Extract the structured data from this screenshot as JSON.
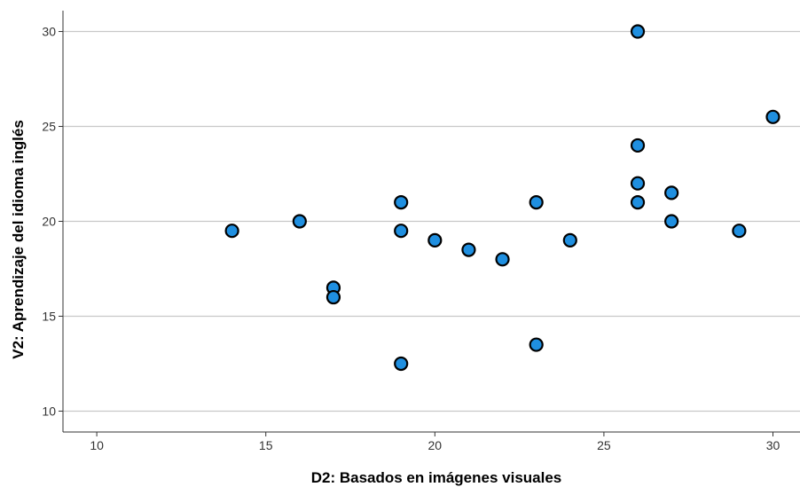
{
  "chart_data": {
    "type": "scatter",
    "title": "",
    "xlabel": "D2: Basados en imágenes visuales",
    "ylabel": "V2: Aprendizaje del idioma inglés",
    "xlim": [
      9,
      30.8
    ],
    "ylim": [
      8.9,
      31.1
    ],
    "xticks": [
      10,
      15,
      20,
      25,
      30
    ],
    "yticks": [
      10,
      15,
      20,
      25,
      30
    ],
    "grid": "horizontal",
    "legend": "none",
    "colors": {
      "point_fill": "#1f8fe0",
      "point_stroke": "#000000",
      "grid": "#c8c8c8",
      "axis": "#333333"
    },
    "points": [
      {
        "x": 14,
        "y": 19.5
      },
      {
        "x": 16,
        "y": 20
      },
      {
        "x": 17,
        "y": 16.5
      },
      {
        "x": 17,
        "y": 16
      },
      {
        "x": 19,
        "y": 21
      },
      {
        "x": 19,
        "y": 19.5
      },
      {
        "x": 19,
        "y": 12.5
      },
      {
        "x": 20,
        "y": 19
      },
      {
        "x": 21,
        "y": 18.5
      },
      {
        "x": 22,
        "y": 18
      },
      {
        "x": 23,
        "y": 21
      },
      {
        "x": 23,
        "y": 13.5
      },
      {
        "x": 24,
        "y": 19
      },
      {
        "x": 26,
        "y": 30
      },
      {
        "x": 26,
        "y": 24
      },
      {
        "x": 26,
        "y": 22
      },
      {
        "x": 26,
        "y": 21
      },
      {
        "x": 27,
        "y": 21.5
      },
      {
        "x": 27,
        "y": 20
      },
      {
        "x": 29,
        "y": 19.5
      },
      {
        "x": 30,
        "y": 25.5
      }
    ]
  }
}
